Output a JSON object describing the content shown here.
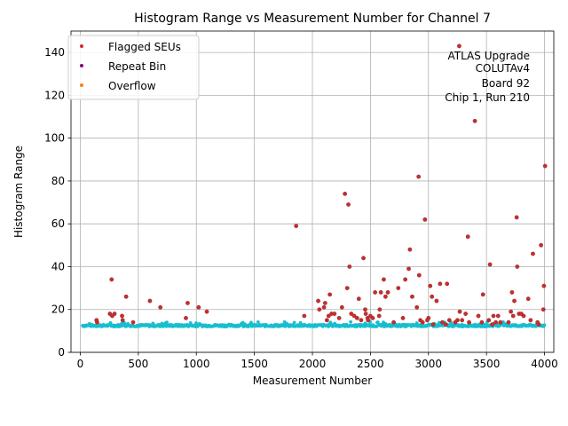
{
  "chart_data": {
    "type": "scatter",
    "title": "Histogram Range vs Measurement Number for Channel 7",
    "xlabel": "Measurement Number",
    "ylabel": "Histogram Range",
    "xlim": [
      -80,
      4080
    ],
    "ylim": [
      0,
      150
    ],
    "xticks": [
      0,
      500,
      1000,
      1500,
      2000,
      2500,
      3000,
      3500,
      4000
    ],
    "yticks": [
      0,
      20,
      40,
      60,
      80,
      100,
      120,
      140
    ],
    "grid": true,
    "legend_position": "top-left",
    "annotation_lines": [
      "ATLAS Upgrade",
      "COLUTAv4",
      "Board 92",
      "Chip 1, Run 210"
    ],
    "baseline_color": "#17becf",
    "series": [
      {
        "name": "Flagged SEUs",
        "color": "#d62728",
        "edge": "#8c3a3a",
        "points": [
          [
            140,
            15
          ],
          [
            145,
            14
          ],
          [
            255,
            18
          ],
          [
            270,
            34
          ],
          [
            275,
            17
          ],
          [
            295,
            18
          ],
          [
            360,
            17
          ],
          [
            365,
            15
          ],
          [
            395,
            26
          ],
          [
            455,
            14
          ],
          [
            600,
            24
          ],
          [
            690,
            21
          ],
          [
            910,
            16
          ],
          [
            925,
            23
          ],
          [
            1020,
            21
          ],
          [
            1090,
            19
          ],
          [
            1860,
            59
          ],
          [
            1930,
            17
          ],
          [
            2050,
            24
          ],
          [
            2060,
            20
          ],
          [
            2100,
            21
          ],
          [
            2110,
            23
          ],
          [
            2125,
            15
          ],
          [
            2140,
            17
          ],
          [
            2150,
            27
          ],
          [
            2165,
            18
          ],
          [
            2190,
            18
          ],
          [
            2230,
            16
          ],
          [
            2255,
            21
          ],
          [
            2280,
            74
          ],
          [
            2300,
            30
          ],
          [
            2310,
            69
          ],
          [
            2320,
            40
          ],
          [
            2335,
            18
          ],
          [
            2360,
            17
          ],
          [
            2385,
            16
          ],
          [
            2400,
            25
          ],
          [
            2420,
            15
          ],
          [
            2440,
            44
          ],
          [
            2455,
            20
          ],
          [
            2460,
            18
          ],
          [
            2475,
            16
          ],
          [
            2480,
            15
          ],
          [
            2500,
            17
          ],
          [
            2520,
            16
          ],
          [
            2540,
            28
          ],
          [
            2575,
            17
          ],
          [
            2580,
            20
          ],
          [
            2590,
            28
          ],
          [
            2615,
            34
          ],
          [
            2630,
            26
          ],
          [
            2650,
            28
          ],
          [
            2700,
            14
          ],
          [
            2740,
            30
          ],
          [
            2780,
            16
          ],
          [
            2800,
            34
          ],
          [
            2830,
            39
          ],
          [
            2840,
            48
          ],
          [
            2860,
            26
          ],
          [
            2900,
            21
          ],
          [
            2915,
            82
          ],
          [
            2920,
            36
          ],
          [
            2930,
            15
          ],
          [
            2950,
            14
          ],
          [
            2970,
            62
          ],
          [
            2990,
            15
          ],
          [
            3000,
            16
          ],
          [
            3015,
            31
          ],
          [
            3030,
            26
          ],
          [
            3040,
            13
          ],
          [
            3070,
            24
          ],
          [
            3100,
            32
          ],
          [
            3120,
            14
          ],
          [
            3150,
            13
          ],
          [
            3160,
            32
          ],
          [
            3180,
            15
          ],
          [
            3230,
            14
          ],
          [
            3250,
            15
          ],
          [
            3265,
            143
          ],
          [
            3270,
            19
          ],
          [
            3290,
            15
          ],
          [
            3320,
            18
          ],
          [
            3340,
            54
          ],
          [
            3350,
            14
          ],
          [
            3400,
            108
          ],
          [
            3430,
            17
          ],
          [
            3460,
            14
          ],
          [
            3470,
            27
          ],
          [
            3520,
            15
          ],
          [
            3530,
            41
          ],
          [
            3550,
            13
          ],
          [
            3560,
            17
          ],
          [
            3580,
            14
          ],
          [
            3600,
            17
          ],
          [
            3620,
            14
          ],
          [
            3690,
            14
          ],
          [
            3710,
            19
          ],
          [
            3720,
            28
          ],
          [
            3730,
            17
          ],
          [
            3740,
            24
          ],
          [
            3760,
            63
          ],
          [
            3765,
            40
          ],
          [
            3780,
            18
          ],
          [
            3800,
            18
          ],
          [
            3820,
            17
          ],
          [
            3860,
            25
          ],
          [
            3880,
            15
          ],
          [
            3900,
            46
          ],
          [
            3940,
            14
          ],
          [
            3950,
            13
          ],
          [
            3970,
            50
          ],
          [
            3990,
            20
          ],
          [
            3995,
            31
          ],
          [
            4005,
            87
          ]
        ]
      },
      {
        "name": "Repeat Bin",
        "color": "#800080",
        "points": []
      },
      {
        "name": "Overflow",
        "color": "#ff7f0e",
        "points": []
      }
    ]
  }
}
